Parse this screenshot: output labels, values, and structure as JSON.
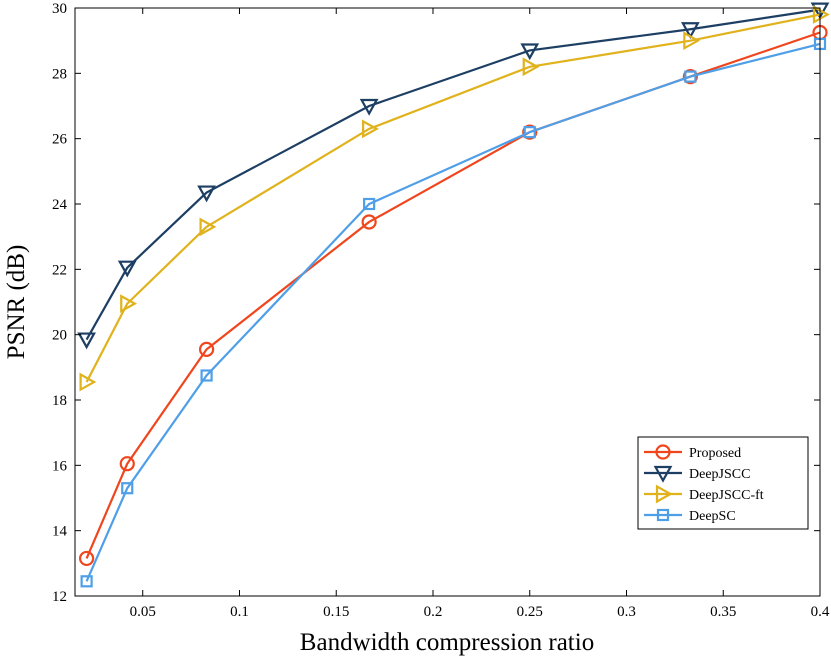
{
  "chart_data": {
    "type": "line",
    "title": "",
    "xlabel": "Bandwidth compression ratio",
    "ylabel": "PSNR (dB)",
    "xlim": [
      0.015,
      0.4
    ],
    "ylim": [
      12,
      30
    ],
    "xticks": [
      0.05,
      0.1,
      0.15,
      0.2,
      0.25,
      0.3,
      0.35,
      0.4
    ],
    "xtick_labels": [
      "0.05",
      "0.1",
      "0.15",
      "0.2",
      "0.25",
      "0.3",
      "0.35",
      "0.4"
    ],
    "yticks": [
      12,
      14,
      16,
      18,
      20,
      22,
      24,
      26,
      28,
      30
    ],
    "ytick_labels": [
      "12",
      "14",
      "16",
      "18",
      "20",
      "22",
      "24",
      "26",
      "28",
      "30"
    ],
    "grid": false,
    "legend_position": "bottom-right",
    "x": [
      0.021,
      0.042,
      0.083,
      0.167,
      0.25,
      0.333,
      0.4
    ],
    "series": [
      {
        "name": "Proposed",
        "marker": "circle",
        "color": "#f0461e",
        "values": [
          13.15,
          16.05,
          19.55,
          23.45,
          26.2,
          27.9,
          29.25
        ]
      },
      {
        "name": "DeepJSCC",
        "marker": "triangle-down",
        "color": "#1d3f63",
        "values": [
          19.85,
          22.05,
          24.35,
          27.0,
          28.7,
          29.35,
          29.95
        ]
      },
      {
        "name": "DeepJSCC-ft",
        "marker": "triangle-right",
        "color": "#e0b21c",
        "values": [
          18.55,
          20.95,
          23.3,
          26.3,
          28.2,
          29.0,
          29.8
        ]
      },
      {
        "name": "DeepSC",
        "marker": "square",
        "color": "#4f9fe8",
        "values": [
          12.45,
          15.3,
          18.75,
          24.0,
          26.2,
          27.9,
          28.9
        ]
      }
    ]
  }
}
